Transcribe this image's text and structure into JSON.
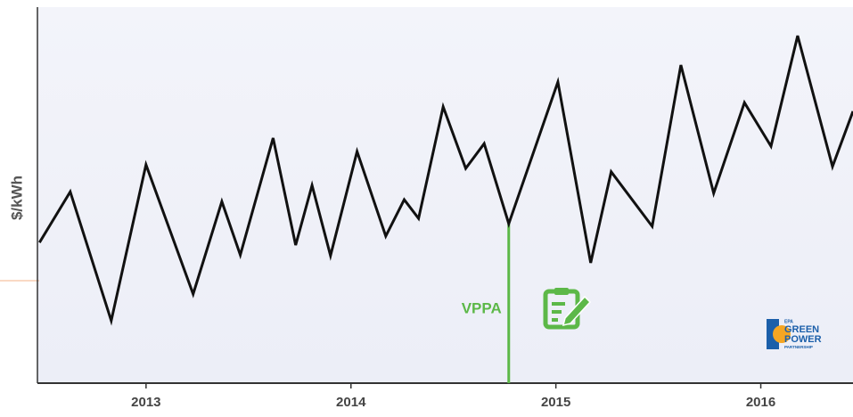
{
  "chart_data": {
    "type": "line",
    "y_label": "$/kWh",
    "x": [
      2012.48,
      2012.63,
      2012.83,
      2013.0,
      2013.23,
      2013.37,
      2013.46,
      2013.62,
      2013.73,
      2013.81,
      2013.9,
      2014.03,
      2014.17,
      2014.26,
      2014.33,
      2014.45,
      2014.56,
      2014.65,
      2014.77,
      2015.01,
      2015.17,
      2015.27,
      2015.47,
      2015.61,
      2015.77,
      2015.92,
      2016.05,
      2016.18,
      2016.35,
      2016.45
    ],
    "values": [
      37.4,
      50.9,
      16.6,
      58.1,
      23.7,
      48.3,
      34.1,
      65.2,
      36.7,
      52.6,
      33.9,
      61.6,
      39.1,
      48.8,
      43.8,
      73.5,
      57.1,
      63.7,
      42.4,
      80.1,
      32.0,
      56.2,
      41.7,
      84.6,
      50.5,
      74.6,
      63.0,
      92.4,
      57.6,
      72.3
    ],
    "color": "#111111",
    "xlim": [
      2012.47,
      2016.45
    ],
    "xticks": [
      2013,
      2014,
      2015,
      2016
    ],
    "ylim": [
      0,
      100
    ],
    "annotation": {
      "text": "VPPA",
      "x": 2014.77,
      "color": "#5cb848"
    },
    "logo": {
      "agency": "EPA",
      "line1": "GREEN",
      "line2": "POWER",
      "line3": "PARTNERSHIP"
    }
  }
}
